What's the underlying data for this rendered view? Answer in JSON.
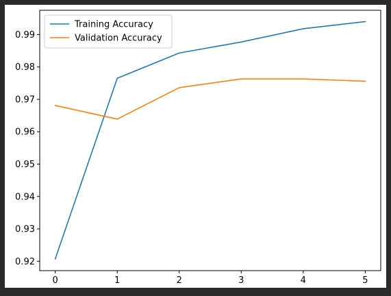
{
  "chart_data": {
    "type": "line",
    "x": [
      0,
      1,
      2,
      3,
      4,
      5
    ],
    "series": [
      {
        "name": "Training Accuracy",
        "color": "#1f77b4",
        "values": [
          0.9207,
          0.9765,
          0.9843,
          0.9877,
          0.9918,
          0.994
        ]
      },
      {
        "name": "Validation Accuracy",
        "color": "#ff7f0e",
        "values": [
          0.9681,
          0.9639,
          0.9736,
          0.9763,
          0.9763,
          0.9756
        ]
      }
    ],
    "xlim": [
      -0.25,
      5.25
    ],
    "ylim": [
      0.9171,
      0.9975
    ],
    "xticks": [
      "0",
      "1",
      "2",
      "3",
      "4",
      "5"
    ],
    "yticks": [
      "0.92",
      "0.93",
      "0.94",
      "0.95",
      "0.96",
      "0.97",
      "0.98",
      "0.99"
    ],
    "xlabel": "",
    "ylabel": "",
    "title": "",
    "grid": false,
    "legend": "top-left",
    "background": "#ffffff",
    "frame": "#2b2b2b"
  }
}
